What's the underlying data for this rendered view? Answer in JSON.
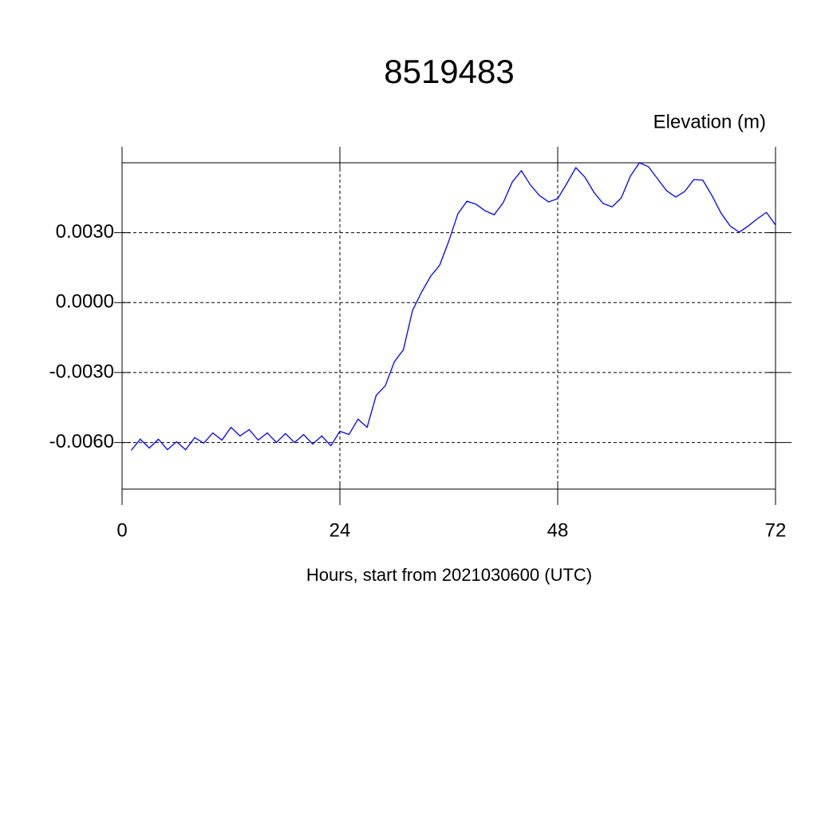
{
  "chart_data": {
    "type": "line",
    "title": "8519483",
    "y_axis_label": "Elevation (m)",
    "x_axis_label": "Hours, start from 2021030600 (UTC)",
    "x": [
      1,
      2,
      3,
      4,
      5,
      6,
      7,
      8,
      9,
      10,
      11,
      12,
      13,
      14,
      15,
      16,
      17,
      18,
      19,
      20,
      21,
      22,
      23,
      24,
      25,
      26,
      27,
      28,
      29,
      30,
      31,
      32,
      33,
      34,
      35,
      36,
      37,
      38,
      39,
      40,
      41,
      42,
      43,
      44,
      45,
      46,
      47,
      48,
      49,
      50,
      51,
      52,
      53,
      54,
      55,
      56,
      57,
      58,
      59,
      60,
      61,
      62,
      63,
      64,
      65,
      66,
      67,
      68,
      69,
      70,
      71,
      72
    ],
    "series": [
      {
        "color": "#0000ff",
        "values": [
          -0.00634,
          -0.00586,
          -0.00624,
          -0.00586,
          -0.00631,
          -0.00597,
          -0.00631,
          -0.00579,
          -0.00603,
          -0.00559,
          -0.0059,
          -0.00535,
          -0.00572,
          -0.00545,
          -0.0059,
          -0.00559,
          -0.006,
          -0.00562,
          -0.006,
          -0.00566,
          -0.00607,
          -0.00572,
          -0.00614,
          -0.00552,
          -0.00566,
          -0.005,
          -0.00535,
          -0.00398,
          -0.00357,
          -0.00254,
          -0.00202,
          -0.00034,
          0.00045,
          0.00113,
          0.00161,
          0.00264,
          0.00381,
          0.00435,
          0.00422,
          0.00394,
          0.00377,
          0.00429,
          0.00518,
          0.00566,
          0.00504,
          0.00459,
          0.00432,
          0.00446,
          0.00511,
          0.00579,
          0.00538,
          0.00473,
          0.00425,
          0.00411,
          0.00449,
          0.00542,
          0.006,
          0.00583,
          0.00531,
          0.0048,
          0.00453,
          0.00477,
          0.00528,
          0.00525,
          0.00459,
          0.00384,
          0.00329,
          0.00302,
          0.00329,
          0.0036,
          0.00387,
          0.00333
        ]
      }
    ],
    "xlim": [
      0,
      72
    ],
    "xticks": [
      0,
      24,
      48,
      72
    ],
    "ylim": [
      -0.008,
      0.006
    ],
    "yticks": [
      {
        "value": -0.006,
        "label": "-0.0060"
      },
      {
        "value": -0.003,
        "label": "-0.0030"
      },
      {
        "value": 0,
        "label": "0.0000"
      },
      {
        "value": 0.003,
        "label": "0.0030"
      }
    ],
    "grid": true
  }
}
